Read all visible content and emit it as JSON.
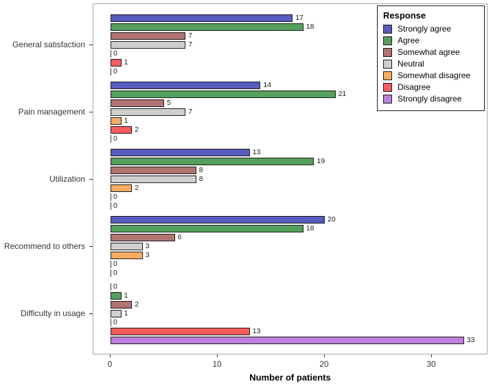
{
  "chart_data": {
    "type": "bar",
    "orientation": "horizontal",
    "xlabel": "Number of patients",
    "ylabel": "",
    "title": "",
    "categories": [
      "General satisfaction",
      "Pain management",
      "Utilization",
      "Recommend to others",
      "Difficulty in usage"
    ],
    "series": [
      {
        "name": "Strongly agree",
        "color": "#585CBE",
        "values": [
          17,
          14,
          13,
          20,
          0
        ]
      },
      {
        "name": "Agree",
        "color": "#55A05C",
        "values": [
          18,
          21,
          19,
          18,
          1
        ]
      },
      {
        "name": "Somewhat agree",
        "color": "#B27373",
        "values": [
          7,
          5,
          8,
          6,
          2
        ]
      },
      {
        "name": "Neutral",
        "color": "#CFCFCF",
        "values": [
          7,
          7,
          8,
          3,
          1
        ]
      },
      {
        "name": "Somewhat disagree",
        "color": "#FBAC60",
        "values": [
          0,
          1,
          2,
          3,
          0
        ]
      },
      {
        "name": "Disagree",
        "color": "#FA5C5C",
        "values": [
          1,
          2,
          0,
          0,
          13
        ]
      },
      {
        "name": "Strongly disagree",
        "color": "#BD80DC",
        "values": [
          0,
          0,
          0,
          0,
          33
        ]
      }
    ],
    "x_ticks": [
      0,
      10,
      20,
      30
    ],
    "xlim": [
      0,
      35
    ],
    "bar_labels": true,
    "grid": false,
    "legend_title": "Response",
    "legend_position": "top-right-inside"
  }
}
